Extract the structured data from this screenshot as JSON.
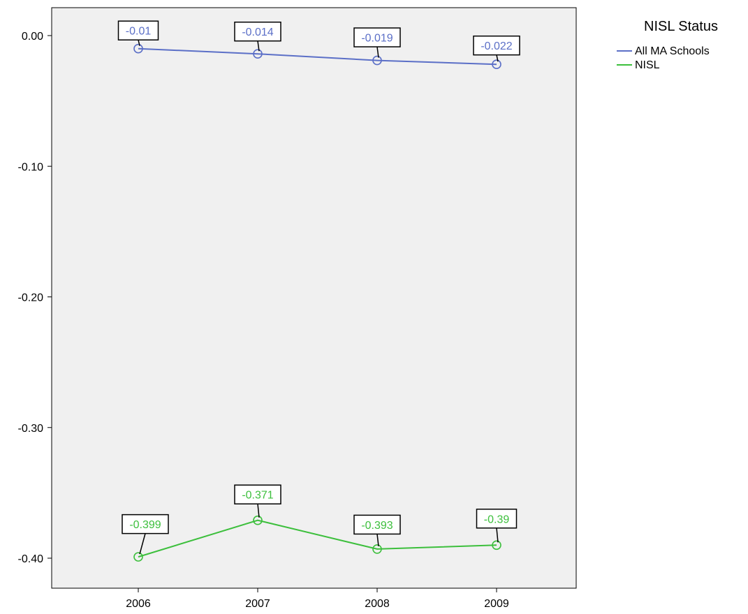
{
  "chart_data": {
    "type": "line",
    "title": "",
    "xlabel": "",
    "ylabel": "",
    "x": [
      "2006",
      "2007",
      "2008",
      "2009"
    ],
    "ylim": [
      -0.42,
      0.01
    ],
    "yticks": [
      0.0,
      -0.1,
      -0.2,
      -0.3,
      -0.4
    ],
    "ytick_labels": [
      "0.00",
      "-0.10",
      "-0.20",
      "-0.30",
      "-0.40"
    ],
    "grid": false,
    "marker": "open-circle",
    "data_labels": true,
    "legend": {
      "title": "NISL Status",
      "placement": "outside-top-right"
    },
    "series": [
      {
        "name": "All MA Schools",
        "color": "#5b6fc7",
        "values": [
          -0.01,
          -0.014,
          -0.019,
          -0.022
        ],
        "labels": [
          "-0.01",
          "-0.014",
          "-0.019",
          "-0.022"
        ]
      },
      {
        "name": "NISL",
        "color": "#3cbf3c",
        "values": [
          -0.399,
          -0.371,
          -0.393,
          -0.39
        ],
        "labels": [
          "-0.399",
          "-0.371",
          "-0.393",
          "-0.39"
        ]
      }
    ],
    "plot_background": "#f0f0f0"
  }
}
